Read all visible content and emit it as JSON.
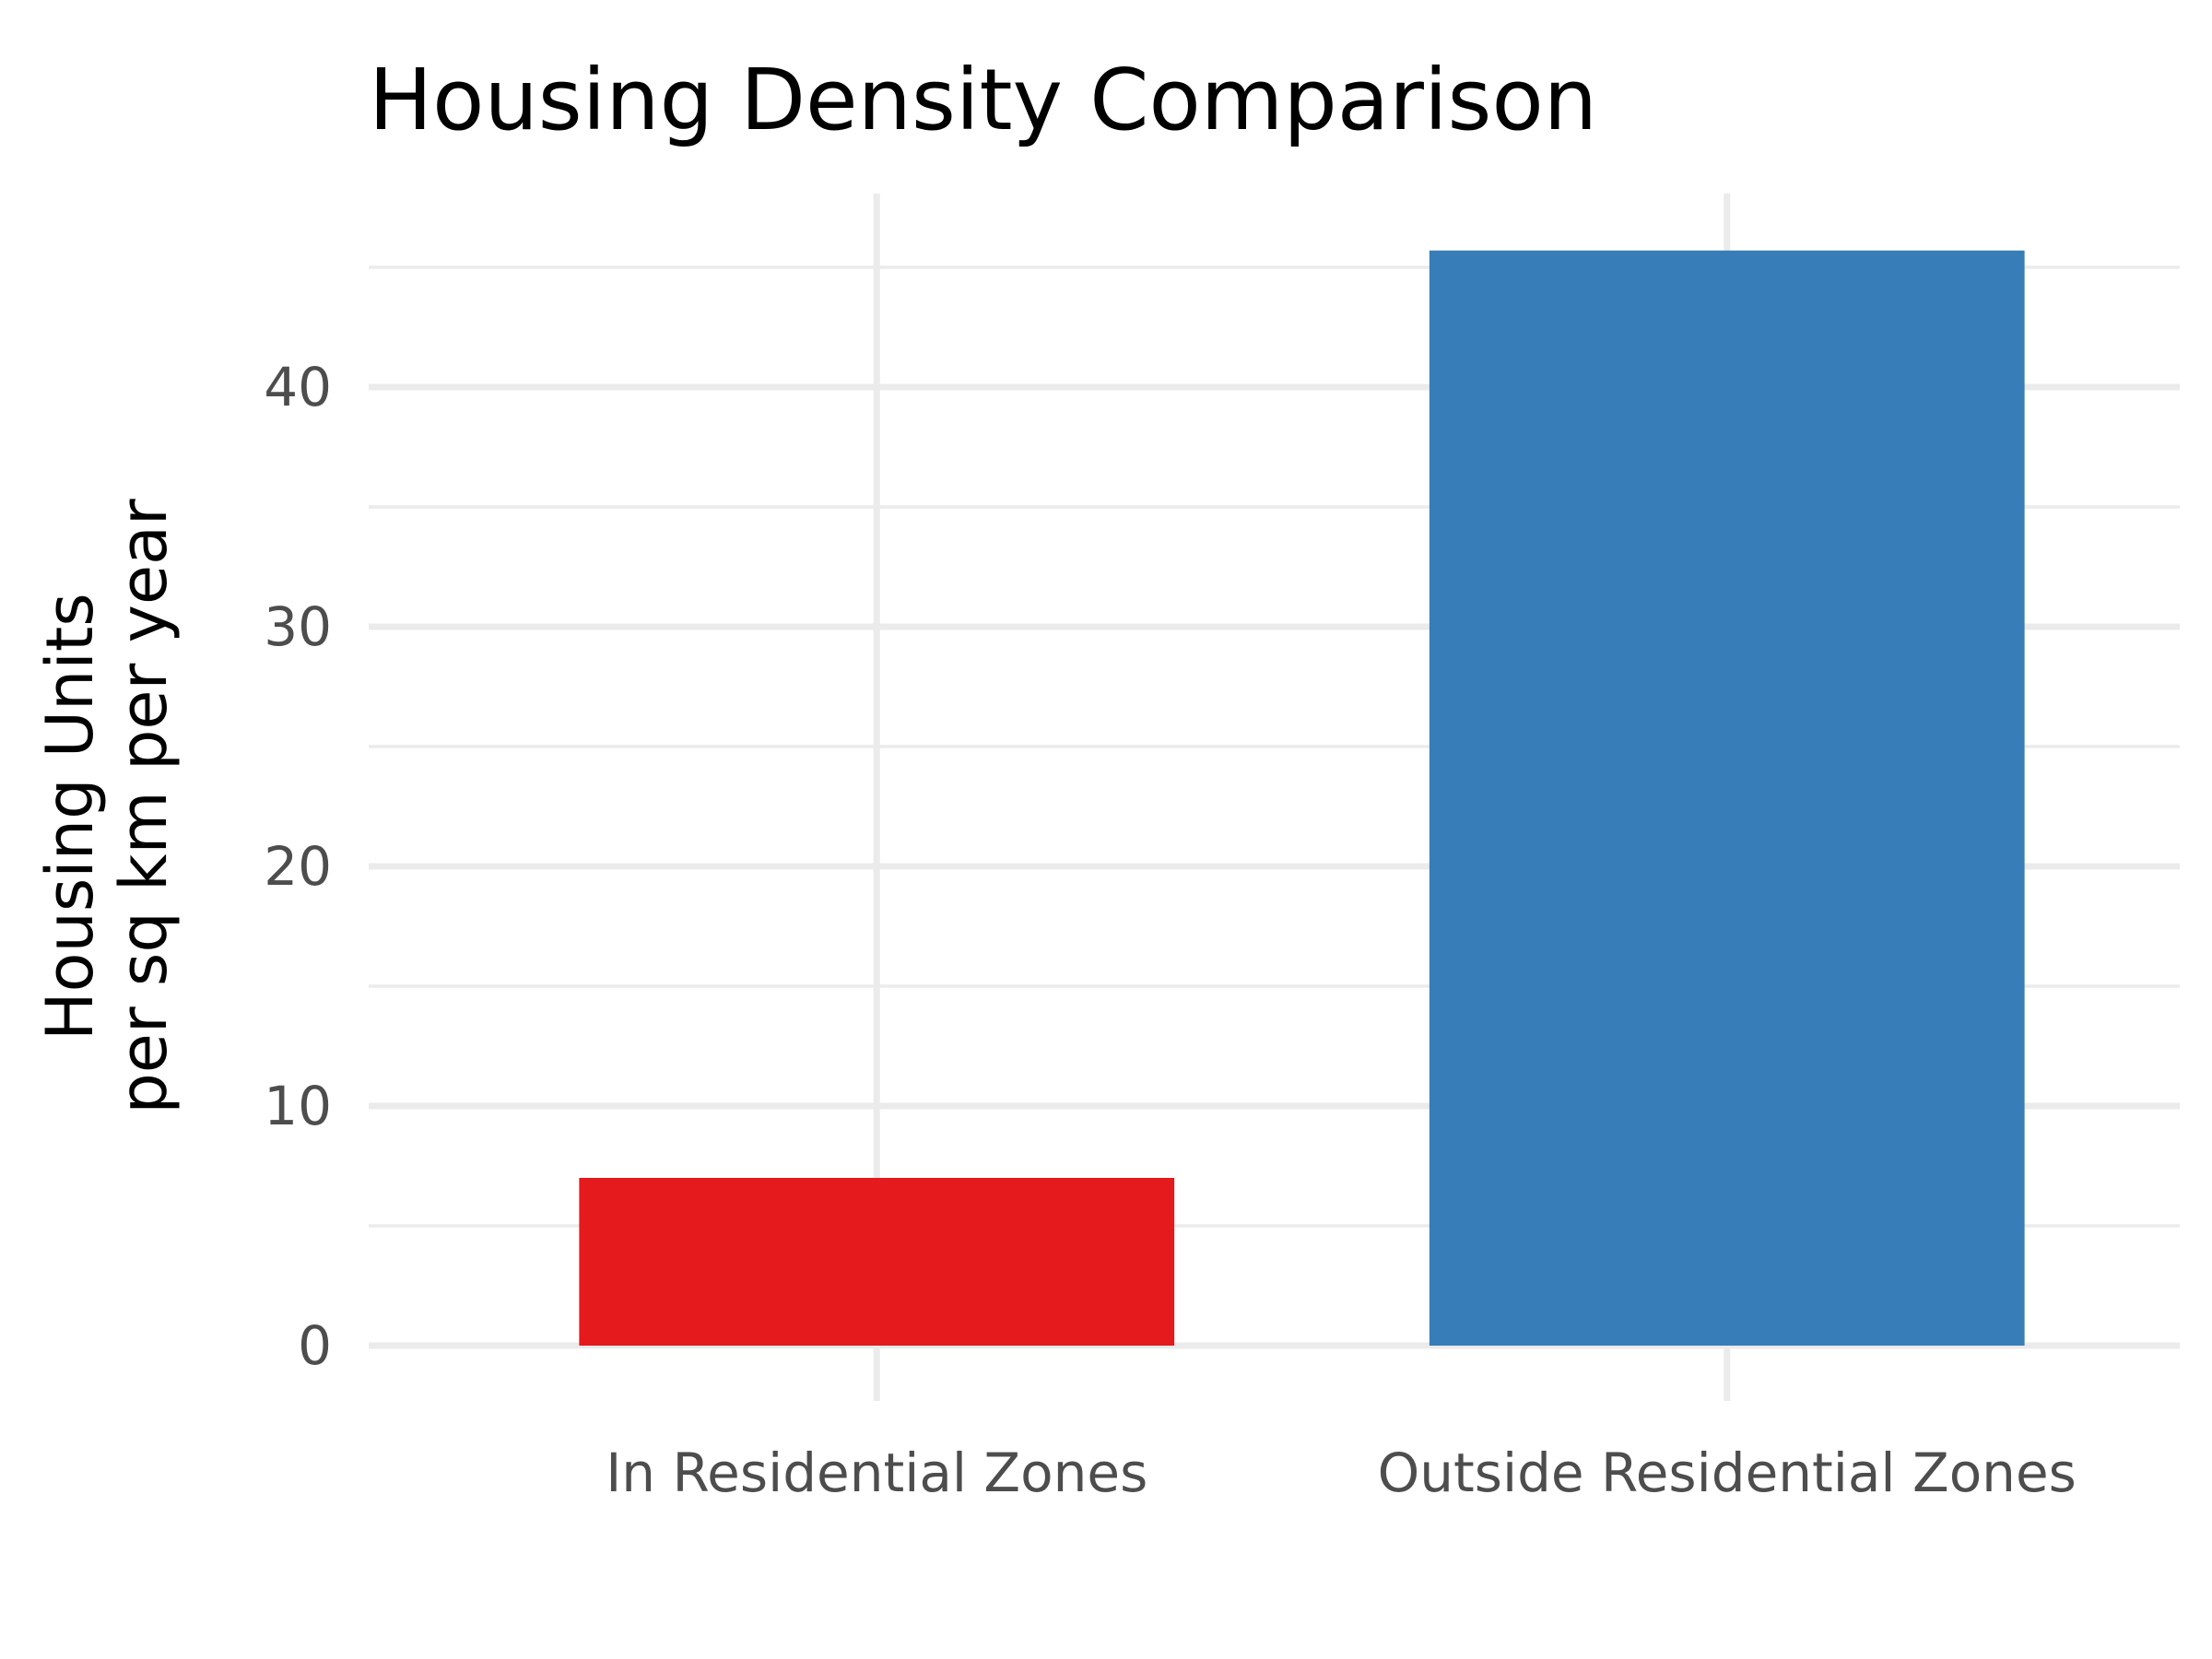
{
  "chart_data": {
    "type": "bar",
    "title": "Housing Density Comparison",
    "xlabel": "",
    "ylabel": [
      "Housing Units",
      "per sq km per year"
    ],
    "categories": [
      "In Residential Zones",
      "Outside Residential Zones"
    ],
    "values": [
      7.0,
      45.7
    ],
    "colors": [
      "#e41a1c",
      "#377eb8"
    ],
    "ylim": [
      0,
      47.5
    ],
    "yticks": [
      0,
      10,
      20,
      30,
      40
    ],
    "grid": true,
    "legend": "none"
  }
}
